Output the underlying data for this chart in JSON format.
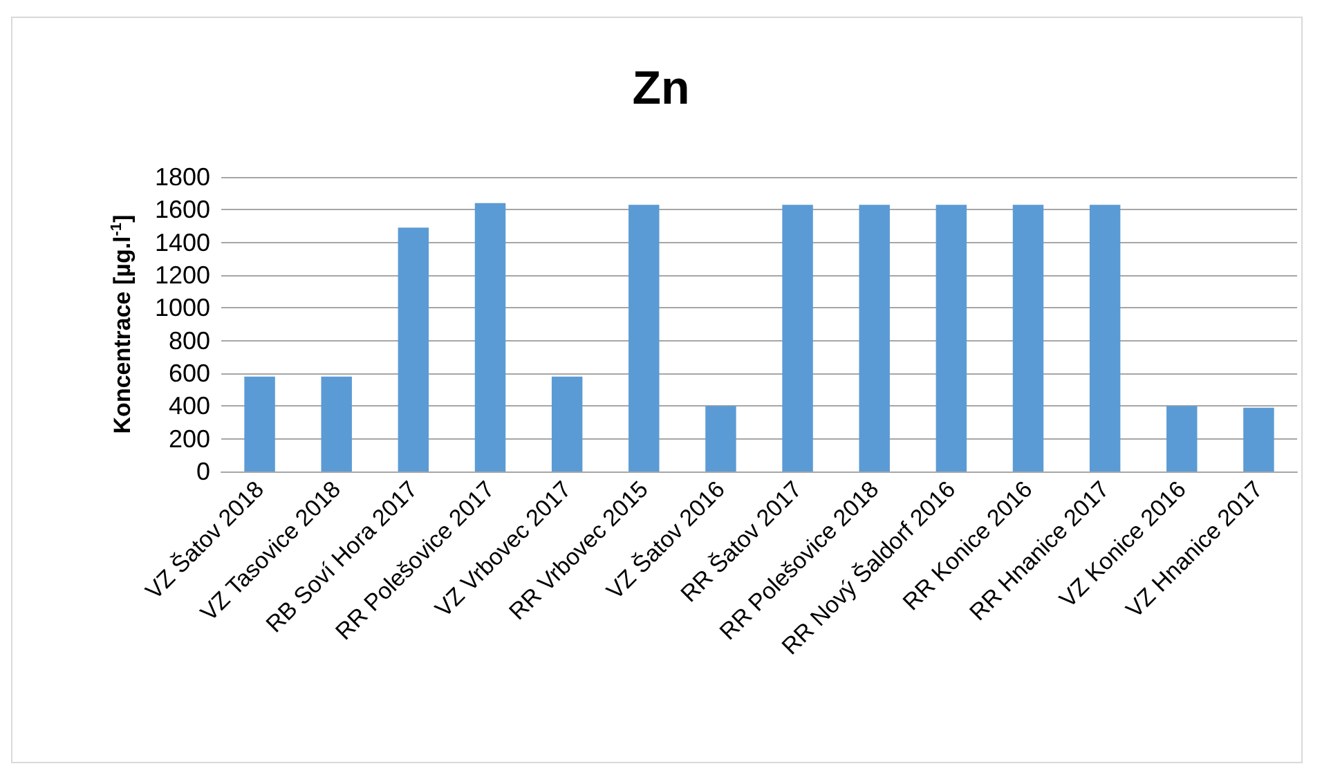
{
  "chart_data": {
    "type": "bar",
    "title": "Zn",
    "ylabel": "Koncentrace [µg.l$^{-1}$]",
    "categories": [
      "VZ Šatov 2018",
      "VZ Tasovice 2018",
      "RB Soví Hora 2017",
      "RR Polešovice 2017",
      "VZ Vrbovec 2017",
      "RR Vrbovec 2015",
      "VZ Šatov 2016",
      "RR Šatov 2017",
      "RR Polešovice 2018",
      "RR Nový Šaldorf 2016",
      "RR Konice 2016",
      "RR Hnanice 2017",
      "VZ Konice 2016",
      "VZ Hnanice 2017"
    ],
    "values": [
      580,
      580,
      1490,
      1640,
      580,
      1630,
      400,
      1630,
      1630,
      1630,
      1630,
      1630,
      400,
      390
    ],
    "color": "#5b9bd5",
    "ylim": [
      0,
      1800
    ],
    "yticks": [
      0,
      200,
      400,
      600,
      800,
      1000,
      1200,
      1400,
      1600,
      1800
    ],
    "grid": "y"
  }
}
